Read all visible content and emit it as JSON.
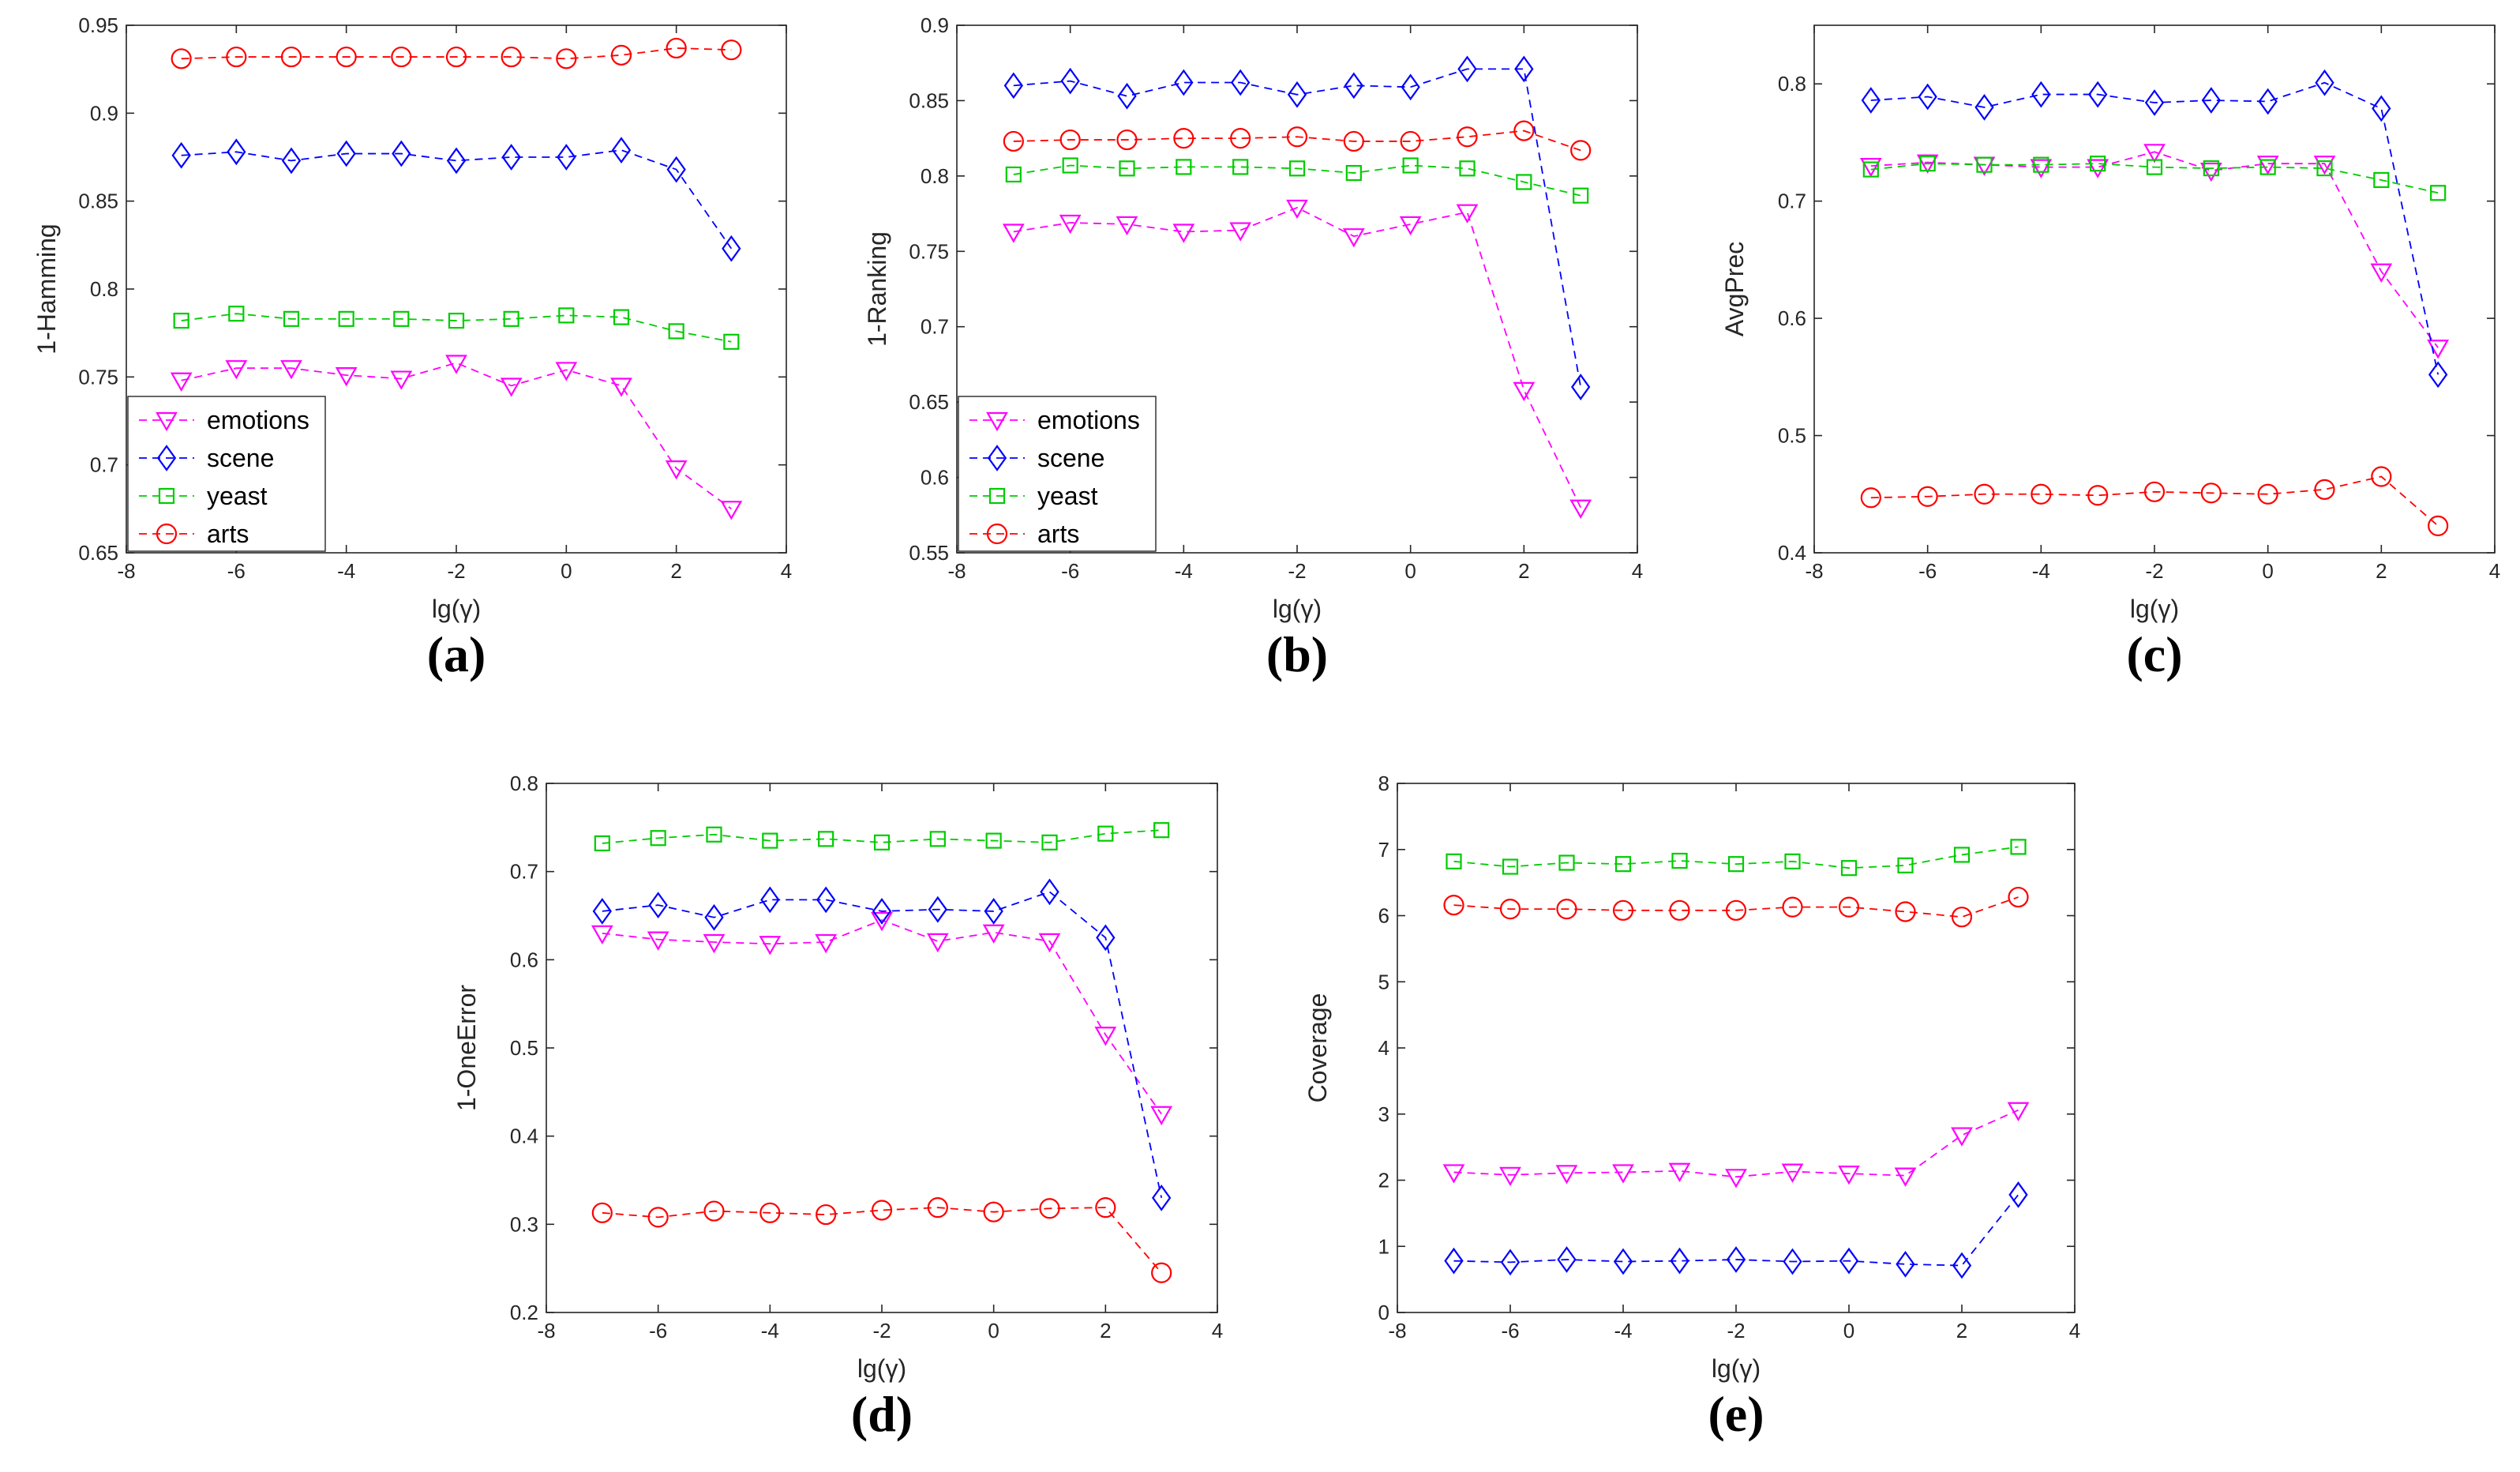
{
  "colors": {
    "emotions": "#ff00ff",
    "scene": "#0000ff",
    "yeast": "#00cc00",
    "arts": "#ff0000",
    "axis": "#262626"
  },
  "chart_data": [
    {
      "type": "line",
      "panel_label": "(a)",
      "xlabel": "lg(γ)",
      "ylabel": "1-Hamming",
      "xlim": [
        -8,
        4
      ],
      "ylim": [
        0.65,
        0.95
      ],
      "xticks": [
        "-8",
        "-6",
        "-4",
        "-2",
        "0",
        "2",
        "4"
      ],
      "yticks": [
        "0.65",
        "0.7",
        "0.75",
        "0.8",
        "0.85",
        "0.9",
        "0.95"
      ],
      "x": [
        -7,
        -6,
        -5,
        -4,
        -3,
        -2,
        -1,
        0,
        1,
        2,
        3
      ],
      "legend": "bottom-left",
      "series": [
        {
          "name": "emotions",
          "marker": "triangle-down",
          "values": [
            0.748,
            0.755,
            0.755,
            0.751,
            0.749,
            0.758,
            0.745,
            0.754,
            0.745,
            0.698,
            0.675
          ]
        },
        {
          "name": "scene",
          "marker": "diamond",
          "values": [
            0.876,
            0.878,
            0.873,
            0.877,
            0.877,
            0.873,
            0.875,
            0.875,
            0.879,
            0.868,
            0.823
          ]
        },
        {
          "name": "yeast",
          "marker": "square",
          "values": [
            0.782,
            0.786,
            0.783,
            0.783,
            0.783,
            0.782,
            0.783,
            0.785,
            0.784,
            0.776,
            0.77
          ]
        },
        {
          "name": "arts",
          "marker": "circle",
          "values": [
            0.931,
            0.932,
            0.932,
            0.932,
            0.932,
            0.932,
            0.932,
            0.931,
            0.933,
            0.937,
            0.936
          ]
        }
      ]
    },
    {
      "type": "line",
      "panel_label": "(b)",
      "xlabel": "lg(γ)",
      "ylabel": "1-Ranking",
      "xlim": [
        -8,
        4
      ],
      "ylim": [
        0.55,
        0.9
      ],
      "xticks": [
        "-8",
        "-6",
        "-4",
        "-2",
        "0",
        "2",
        "4"
      ],
      "yticks": [
        "0.55",
        "0.6",
        "0.65",
        "0.7",
        "0.75",
        "0.8",
        "0.85",
        "0.9"
      ],
      "x": [
        -7,
        -6,
        -5,
        -4,
        -3,
        -2,
        -1,
        0,
        1,
        2,
        3
      ],
      "legend": "bottom-left",
      "series": [
        {
          "name": "emotions",
          "marker": "triangle-down",
          "values": [
            0.763,
            0.769,
            0.768,
            0.763,
            0.764,
            0.779,
            0.76,
            0.768,
            0.776,
            0.658,
            0.58
          ]
        },
        {
          "name": "scene",
          "marker": "diamond",
          "values": [
            0.86,
            0.863,
            0.853,
            0.862,
            0.862,
            0.854,
            0.86,
            0.859,
            0.871,
            0.871,
            0.66
          ]
        },
        {
          "name": "yeast",
          "marker": "square",
          "values": [
            0.801,
            0.807,
            0.805,
            0.806,
            0.806,
            0.805,
            0.802,
            0.807,
            0.805,
            0.796,
            0.787
          ]
        },
        {
          "name": "arts",
          "marker": "circle",
          "values": [
            0.823,
            0.824,
            0.824,
            0.825,
            0.825,
            0.826,
            0.823,
            0.823,
            0.826,
            0.83,
            0.817
          ]
        }
      ]
    },
    {
      "type": "line",
      "panel_label": "(c)",
      "xlabel": "lg(γ)",
      "ylabel": "AvgPrec",
      "xlim": [
        -8,
        4
      ],
      "ylim": [
        0.4,
        0.85
      ],
      "xticks": [
        "-8",
        "-6",
        "-4",
        "-2",
        "0",
        "2",
        "4"
      ],
      "yticks": [
        "0.4",
        "0.5",
        "0.6",
        "0.7",
        "0.8"
      ],
      "x": [
        -7,
        -6,
        -5,
        -4,
        -3,
        -2,
        -1,
        0,
        1,
        2,
        3
      ],
      "legend": "none",
      "series": [
        {
          "name": "emotions",
          "marker": "triangle-down",
          "values": [
            0.73,
            0.733,
            0.731,
            0.729,
            0.729,
            0.742,
            0.726,
            0.732,
            0.732,
            0.64,
            0.575
          ]
        },
        {
          "name": "scene",
          "marker": "diamond",
          "values": [
            0.786,
            0.789,
            0.78,
            0.791,
            0.791,
            0.784,
            0.786,
            0.785,
            0.801,
            0.779,
            0.552
          ]
        },
        {
          "name": "yeast",
          "marker": "square",
          "values": [
            0.727,
            0.732,
            0.731,
            0.731,
            0.732,
            0.729,
            0.728,
            0.729,
            0.728,
            0.718,
            0.707
          ]
        },
        {
          "name": "arts",
          "marker": "circle",
          "values": [
            0.447,
            0.448,
            0.45,
            0.45,
            0.449,
            0.452,
            0.451,
            0.45,
            0.454,
            0.465,
            0.423
          ]
        }
      ]
    },
    {
      "type": "line",
      "panel_label": "(d)",
      "xlabel": "lg(γ)",
      "ylabel": "1-OneError",
      "xlim": [
        -8,
        4
      ],
      "ylim": [
        0.2,
        0.8
      ],
      "xticks": [
        "-8",
        "-6",
        "-4",
        "-2",
        "0",
        "2",
        "4"
      ],
      "yticks": [
        "0.2",
        "0.3",
        "0.4",
        "0.5",
        "0.6",
        "0.7",
        "0.8"
      ],
      "x": [
        -7,
        -6,
        -5,
        -4,
        -3,
        -2,
        -1,
        0,
        1,
        2,
        3
      ],
      "legend": "none",
      "series": [
        {
          "name": "emotions",
          "marker": "triangle-down",
          "values": [
            0.63,
            0.623,
            0.62,
            0.618,
            0.62,
            0.645,
            0.621,
            0.631,
            0.621,
            0.515,
            0.425
          ]
        },
        {
          "name": "scene",
          "marker": "diamond",
          "values": [
            0.655,
            0.662,
            0.648,
            0.668,
            0.668,
            0.655,
            0.657,
            0.655,
            0.677,
            0.625,
            0.33
          ]
        },
        {
          "name": "yeast",
          "marker": "square",
          "values": [
            0.732,
            0.738,
            0.742,
            0.735,
            0.737,
            0.733,
            0.737,
            0.735,
            0.733,
            0.743,
            0.747
          ]
        },
        {
          "name": "arts",
          "marker": "circle",
          "values": [
            0.313,
            0.308,
            0.315,
            0.313,
            0.311,
            0.316,
            0.319,
            0.314,
            0.318,
            0.319,
            0.245
          ]
        }
      ]
    },
    {
      "type": "line",
      "panel_label": "(e)",
      "xlabel": "lg(γ)",
      "ylabel": "Coverage",
      "xlim": [
        -8,
        4
      ],
      "ylim": [
        0,
        8
      ],
      "xticks": [
        "-8",
        "-6",
        "-4",
        "-2",
        "0",
        "2",
        "4"
      ],
      "yticks": [
        "0",
        "1",
        "2",
        "3",
        "4",
        "5",
        "6",
        "7",
        "8"
      ],
      "x": [
        -7,
        -6,
        -5,
        -4,
        -3,
        -2,
        -1,
        0,
        1,
        2,
        3
      ],
      "legend": "none",
      "series": [
        {
          "name": "emotions",
          "marker": "triangle-down",
          "values": [
            2.12,
            2.08,
            2.11,
            2.12,
            2.14,
            2.05,
            2.13,
            2.1,
            2.07,
            2.68,
            3.06
          ]
        },
        {
          "name": "scene",
          "marker": "diamond",
          "values": [
            0.78,
            0.76,
            0.8,
            0.77,
            0.78,
            0.8,
            0.77,
            0.78,
            0.73,
            0.71,
            1.78
          ]
        },
        {
          "name": "yeast",
          "marker": "square",
          "values": [
            6.82,
            6.74,
            6.8,
            6.78,
            6.83,
            6.78,
            6.82,
            6.72,
            6.76,
            6.92,
            7.04
          ]
        },
        {
          "name": "arts",
          "marker": "circle",
          "values": [
            6.16,
            6.1,
            6.1,
            6.08,
            6.08,
            6.08,
            6.13,
            6.13,
            6.06,
            5.98,
            6.28
          ]
        }
      ]
    }
  ]
}
